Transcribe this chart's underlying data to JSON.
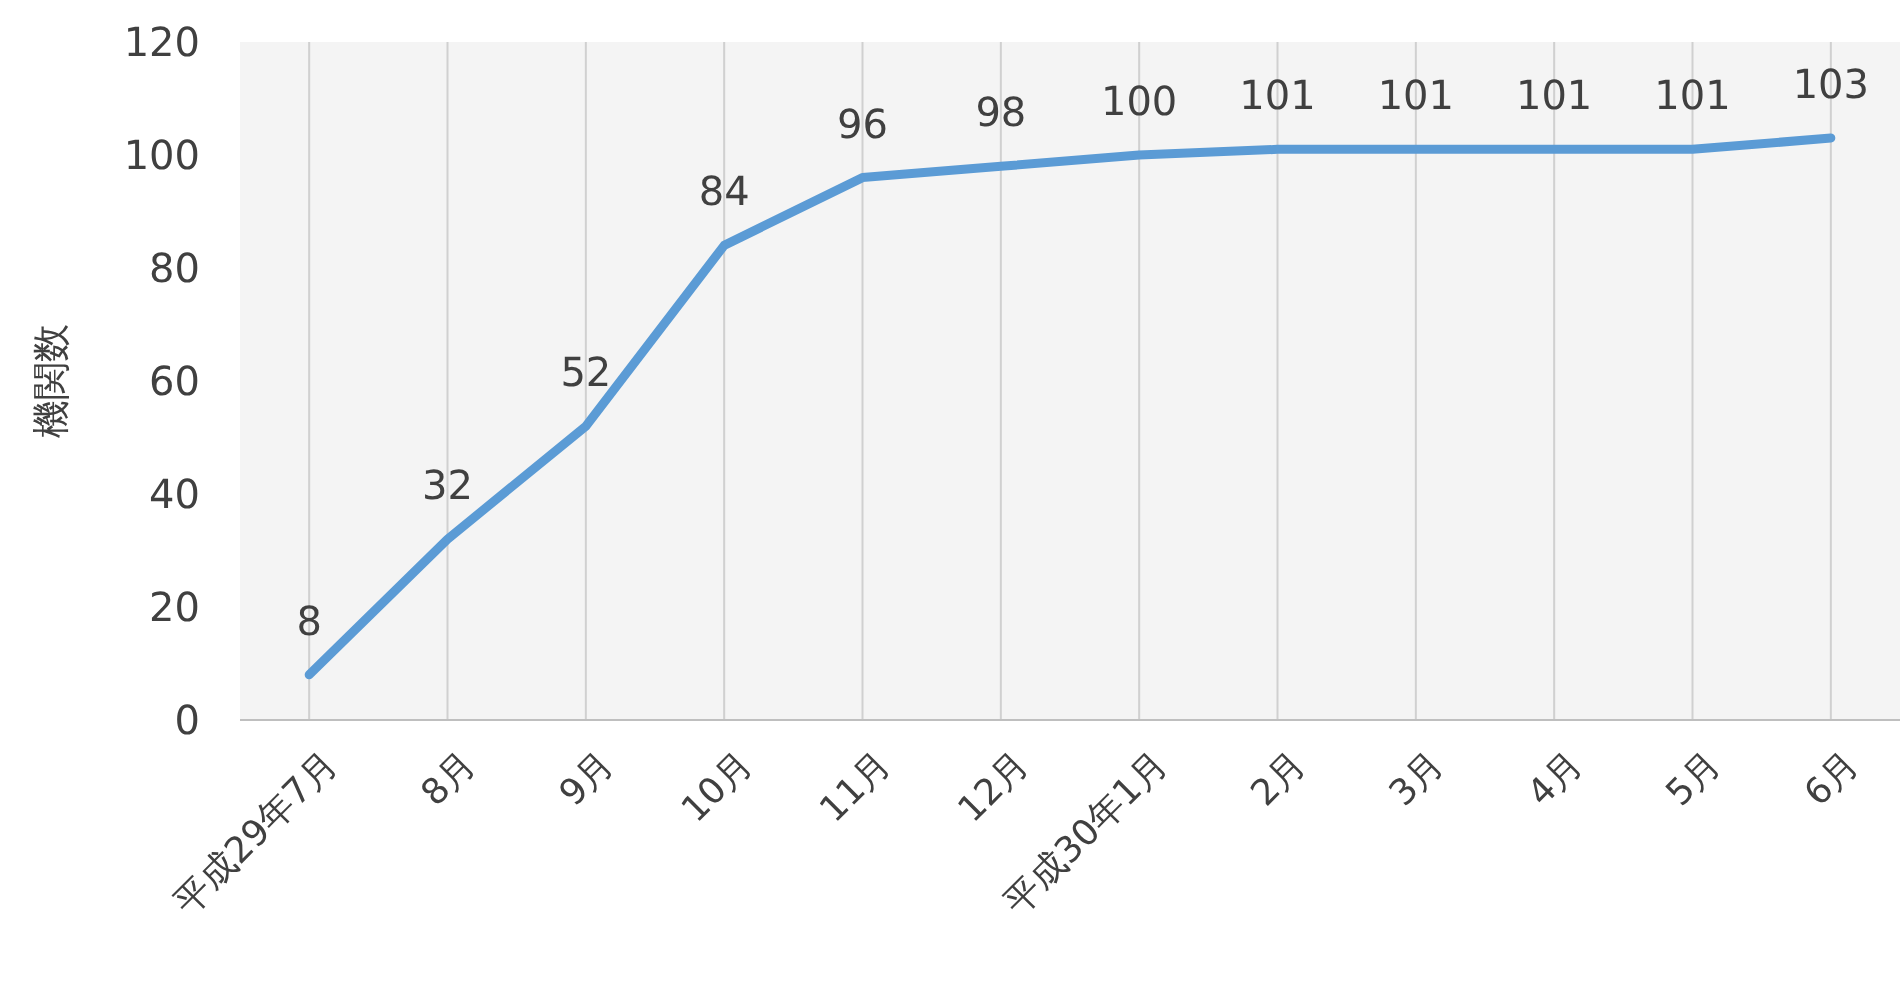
{
  "chart_data": {
    "type": "line",
    "ylabel": "機関数",
    "categories": [
      "平成29年7月",
      "8月",
      "9月",
      "10月",
      "11月",
      "12月",
      "平成30年1月",
      "2月",
      "3月",
      "4月",
      "5月",
      "6月"
    ],
    "series": [
      {
        "color": "#5b9bd5",
        "values": [
          8,
          32,
          52,
          84,
          96,
          98,
          100,
          101,
          101,
          101,
          101,
          103
        ]
      }
    ],
    "ylim": [
      0,
      120
    ],
    "yticks": [
      0,
      20,
      40,
      60,
      80,
      100,
      120
    ],
    "grid": "x",
    "data_labels": true
  }
}
